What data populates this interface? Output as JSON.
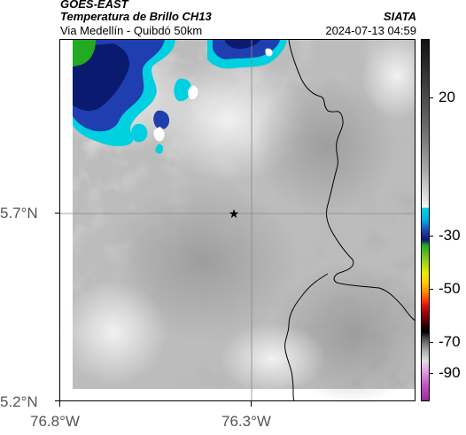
{
  "header": {
    "satellite": "GOES-EAST",
    "product": "Temperatura de Brillo CH13",
    "region": "Via Medellín - Quibdó 50km",
    "organization": "SIATA",
    "timestamp": "2024-07-13 04:59"
  },
  "map": {
    "x_axis_labels": [
      "76.8°W",
      "76.3°W"
    ],
    "y_axis_labels": [
      "5.7°N",
      "5.2°N"
    ],
    "marker": "star",
    "gridlines": true
  },
  "colorbar": {
    "labels": [
      "20",
      "-30",
      "-50",
      "-70",
      "-90"
    ],
    "colors": {
      "gray_scale_top": "#111111",
      "gray_scale_bottom": "#f2f2f2",
      "cyan": "#00d0e0",
      "blue": "#1f3fb0",
      "navy": "#0a1a6e",
      "green": "#22aa22",
      "yellow": "#e8e800",
      "orange": "#ff8a00",
      "red": "#d01010",
      "magenta": "#c050c0"
    }
  }
}
